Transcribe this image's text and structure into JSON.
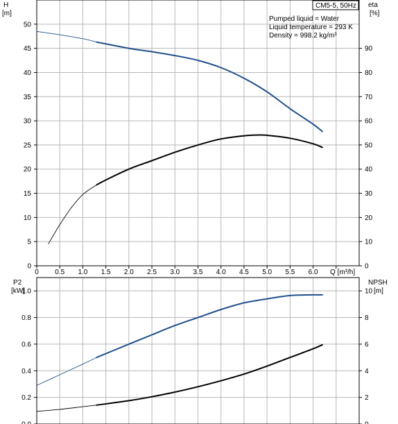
{
  "colors": {
    "blue_curve": "#1f4e8c",
    "black_curve": "#000000",
    "grid": "#b8b8b8",
    "frame": "#000000"
  },
  "chart_data": [
    {
      "type": "line",
      "panel": "top",
      "title_box": "CM5-5, 50Hz",
      "info_lines": [
        "Pumped liquid = Water",
        "Liquid temperature = 293 K",
        "Density = 998.2 kg/m³"
      ],
      "left_axis": {
        "label": "H",
        "unit": "[m]",
        "ylim": [
          0,
          55
        ],
        "ticks": [
          0,
          5,
          10,
          15,
          20,
          25,
          30,
          35,
          40,
          45,
          50
        ],
        "tick_labels": [
          "0",
          "5",
          "10",
          "15",
          "20",
          "25",
          "30",
          "35",
          "40",
          "45",
          "50"
        ]
      },
      "right_axis": {
        "label": "eta",
        "unit": "[%]",
        "ylim": [
          0,
          110
        ],
        "ticks": [
          0,
          10,
          20,
          30,
          40,
          50,
          60,
          70,
          80,
          90
        ],
        "tick_labels": [
          "0",
          "10",
          "20",
          "30",
          "40",
          "50",
          "60",
          "70",
          "80",
          "90"
        ]
      },
      "x_axis": {
        "label": "Q [m³/h]",
        "xlim": [
          0,
          7.0
        ],
        "ticks": [
          0,
          0.5,
          1.0,
          1.5,
          2.0,
          2.5,
          3.0,
          3.5,
          4.0,
          4.5,
          5.0,
          5.5,
          6.0,
          6.5
        ],
        "tick_labels": [
          "0",
          "0.5",
          "1.0",
          "1.5",
          "2.0",
          "2.5",
          "3.0",
          "3.5",
          "4.0",
          "4.5",
          "5.0",
          "5.5",
          "6.0"
        ]
      },
      "grid": true,
      "series": [
        {
          "axis": "left",
          "color": "blue",
          "x": [
            0,
            0.5,
            1.0,
            1.3,
            2.0,
            2.5,
            3.0,
            3.5,
            4.0,
            4.5,
            5.0,
            5.5,
            6.0,
            6.2
          ],
          "y": [
            48.5,
            47.8,
            47.0,
            46.3,
            45.0,
            44.3,
            43.5,
            42.5,
            41.0,
            38.8,
            36.0,
            32.5,
            29.3,
            27.8
          ],
          "thin_until": 1.3
        },
        {
          "axis": "right",
          "color": "black",
          "x": [
            0.25,
            0.5,
            0.75,
            1.0,
            1.3,
            1.5,
            2.0,
            2.5,
            3.0,
            3.5,
            4.0,
            4.5,
            4.8,
            5.0,
            5.5,
            6.0,
            6.2
          ],
          "y": [
            9,
            17,
            24,
            29.5,
            33.5,
            35.5,
            40,
            43.5,
            47,
            50,
            52.5,
            53.8,
            54.1,
            54,
            52.8,
            50.5,
            49
          ],
          "thin_until": 1.3
        }
      ]
    },
    {
      "type": "line",
      "panel": "bottom",
      "left_axis": {
        "label": "P2",
        "unit": "[kW]",
        "ylim": [
          0,
          1.1
        ],
        "ticks": [
          0,
          0.2,
          0.4,
          0.6,
          0.8,
          1.0
        ],
        "tick_labels": [
          "0.0",
          "0.2",
          "0.4",
          "0.6",
          "0.8",
          "1.0"
        ]
      },
      "right_axis": {
        "label": "NPSH",
        "unit": "[m]",
        "ylim": [
          0,
          11
        ],
        "ticks": [
          0,
          2,
          4,
          6,
          8,
          10
        ],
        "tick_labels": [
          "0",
          "2",
          "4",
          "6",
          "8",
          "10"
        ]
      },
      "x_axis": {
        "xlim": [
          0,
          7.0
        ],
        "ticks": [
          0,
          0.5,
          1.0,
          1.5,
          2.0,
          2.5,
          3.0,
          3.5,
          4.0,
          4.5,
          5.0,
          5.5,
          6.0,
          6.5
        ]
      },
      "grid": true,
      "series": [
        {
          "axis": "left",
          "color": "blue",
          "x": [
            0,
            0.5,
            1.0,
            1.3,
            2.0,
            2.5,
            3.0,
            3.5,
            4.0,
            4.5,
            5.0,
            5.5,
            6.0,
            6.2
          ],
          "y": [
            0.29,
            0.37,
            0.45,
            0.5,
            0.6,
            0.67,
            0.74,
            0.8,
            0.86,
            0.91,
            0.94,
            0.965,
            0.97,
            0.97
          ],
          "thin_until": 1.3
        },
        {
          "axis": "right",
          "color": "black",
          "x": [
            0,
            0.5,
            1.0,
            1.3,
            2.0,
            2.5,
            3.0,
            3.5,
            4.0,
            4.5,
            5.0,
            5.5,
            6.0,
            6.2
          ],
          "y": [
            0.95,
            1.1,
            1.3,
            1.42,
            1.75,
            2.05,
            2.4,
            2.8,
            3.25,
            3.75,
            4.35,
            5.0,
            5.65,
            5.95
          ],
          "thin_until": 1.3
        }
      ]
    }
  ]
}
